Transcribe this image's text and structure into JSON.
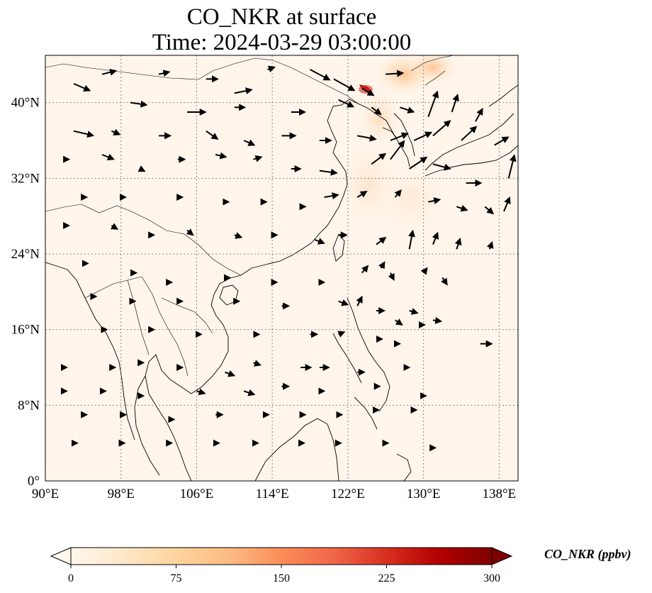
{
  "title": {
    "line1": "CO_NKR at surface",
    "line2": "Time: 2024-03-29 03:00:00"
  },
  "map": {
    "extent": {
      "lon_min": 90,
      "lon_max": 140,
      "lat_min": 0,
      "lat_max": 45
    },
    "lon_ticks": [
      90,
      98,
      106,
      114,
      122,
      130,
      138
    ],
    "lat_ticks": [
      0,
      8,
      16,
      24,
      32,
      40
    ],
    "lon_tick_labels": [
      "90°E",
      "98°E",
      "106°E",
      "114°E",
      "122°E",
      "130°E",
      "138°E"
    ],
    "lat_tick_labels": [
      "0°",
      "8°N",
      "16°N",
      "24°N",
      "32°N",
      "40°N"
    ],
    "gridlines": true,
    "background_color": "#fff5eb",
    "features": [
      "coastlines",
      "borders",
      "wind-vectors"
    ],
    "hotspot": {
      "lon": 123.2,
      "lat": 41.7,
      "value": 260
    }
  },
  "colorbar": {
    "label": "CO_NKR (ppbv)",
    "min": 0,
    "max": 300,
    "ticks": [
      0,
      75,
      150,
      225,
      300
    ],
    "tick_labels": [
      "0",
      "75",
      "150",
      "225",
      "300"
    ],
    "extend": "both",
    "colormap": "OrRd",
    "colors": [
      "#fff7ec",
      "#fee8c8",
      "#fdd49e",
      "#fdbb84",
      "#fc8d59",
      "#ef6548",
      "#d7301f",
      "#b30000",
      "#7f0000"
    ]
  },
  "wind_vectors": [
    [
      93,
      42,
      1.4,
      -0.6
    ],
    [
      96,
      43,
      1.2,
      0.3
    ],
    [
      102,
      43,
      0.9,
      0.2
    ],
    [
      107,
      42.5,
      1.0,
      0
    ],
    [
      110,
      41,
      1.5,
      0.3
    ],
    [
      113.5,
      43.5,
      0.6,
      0.2
    ],
    [
      118,
      43.5,
      1.7,
      -0.9
    ],
    [
      120.5,
      42.5,
      1.8,
      -1.0
    ],
    [
      123.5,
      41.5,
      1.0,
      -0.6
    ],
    [
      126,
      43,
      1.5,
      0.1
    ],
    [
      99,
      40,
      1.4,
      -0.2
    ],
    [
      105,
      39,
      1.6,
      0
    ],
    [
      110,
      39.5,
      0.9,
      0
    ],
    [
      116,
      39,
      1.2,
      0
    ],
    [
      121,
      40.3,
      1.3,
      -0.6
    ],
    [
      124.5,
      39.5,
      0.8,
      -0.6
    ],
    [
      127.5,
      39.5,
      1.2,
      -0.4
    ],
    [
      130.5,
      38.5,
      0.8,
      2.2
    ],
    [
      133,
      39,
      0.5,
      1.5
    ],
    [
      135.5,
      38,
      0.6,
      1.1
    ],
    [
      93,
      37,
      1.7,
      -0.4
    ],
    [
      97,
      37,
      0.7,
      -0.3
    ],
    [
      102,
      36.5,
      1.0,
      0
    ],
    [
      107,
      37,
      1.0,
      -0.7
    ],
    [
      111,
      36,
      0.9,
      -0.4
    ],
    [
      115,
      36.5,
      1.2,
      0
    ],
    [
      119,
      36,
      1.0,
      0
    ],
    [
      123,
      36.5,
      1.6,
      -0.3
    ],
    [
      126.5,
      36,
      1.5,
      0.6
    ],
    [
      129,
      36,
      1.5,
      0.7
    ],
    [
      131,
      36.5,
      1.5,
      1.3
    ],
    [
      134,
      36,
      1.3,
      1.2
    ],
    [
      137.5,
      35.5,
      1.2,
      0.7
    ],
    [
      92,
      34,
      0.4,
      0
    ],
    [
      96,
      34.5,
      1.0,
      -0.4
    ],
    [
      100,
      33,
      0.4,
      -0.2
    ],
    [
      104,
      34,
      0.6,
      0
    ],
    [
      108,
      34.5,
      0.9,
      -0.2
    ],
    [
      112,
      34,
      0.7,
      0.2
    ],
    [
      116,
      33,
      0.8,
      0
    ],
    [
      119,
      32.8,
      1.5,
      -0.2
    ],
    [
      124.5,
      33.5,
      1.2,
      0.9
    ],
    [
      126.5,
      34,
      1.2,
      1.6
    ],
    [
      128.5,
      33,
      1.5,
      1.0
    ],
    [
      131,
      33.5,
      1.5,
      -0.4
    ],
    [
      134.5,
      31.5,
      1.3,
      0
    ],
    [
      139,
      32,
      0.5,
      2.0
    ],
    [
      94,
      30,
      0.3,
      0
    ],
    [
      98,
      30,
      0.4,
      0
    ],
    [
      104,
      30,
      0.4,
      0
    ],
    [
      109,
      29.5,
      0.3,
      0
    ],
    [
      113,
      29.5,
      0.3,
      0
    ],
    [
      117,
      29,
      0.4,
      0
    ],
    [
      119.5,
      30,
      1.2,
      0.2
    ],
    [
      123,
      30,
      0.8,
      0.5
    ],
    [
      127,
      30,
      0.5,
      0.6
    ],
    [
      130.5,
      29.5,
      1.0,
      0.2
    ],
    [
      133.5,
      29,
      0.9,
      -0.3
    ],
    [
      136.5,
      29,
      0.7,
      -0.6
    ],
    [
      138.5,
      28.5,
      0.5,
      1.2
    ],
    [
      92,
      27,
      0.4,
      0
    ],
    [
      97,
      27,
      0.5,
      -0.3
    ],
    [
      101,
      26,
      0.4,
      0
    ],
    [
      105,
      26.5,
      0.5,
      -0.4
    ],
    [
      110,
      26,
      0.6,
      -0.2
    ],
    [
      114,
      26,
      0.4,
      0
    ],
    [
      118.5,
      25.5,
      0.8,
      -0.3
    ],
    [
      121,
      26,
      0.7,
      0
    ],
    [
      125,
      25,
      0.8,
      0.6
    ],
    [
      128.5,
      24.5,
      0.3,
      1.6
    ],
    [
      131,
      25,
      0.4,
      1.0
    ],
    [
      133.5,
      24.5,
      0.3,
      0.9
    ],
    [
      137,
      24.5,
      0.2,
      0.6
    ],
    [
      94,
      23,
      0.4,
      0
    ],
    [
      99,
      22,
      0.5,
      0
    ],
    [
      103,
      21,
      0.3,
      0
    ],
    [
      109,
      21.5,
      0.4,
      0
    ],
    [
      114,
      21,
      0.4,
      0
    ],
    [
      119,
      21,
      0.4,
      0
    ],
    [
      123.5,
      22,
      0.5,
      0.6
    ],
    [
      125.5,
      22.5,
      0.3,
      0.5
    ],
    [
      126.5,
      22,
      0.3,
      -0.6
    ],
    [
      130,
      22,
      0.3,
      0.4
    ],
    [
      132,
      21.5,
      0.4,
      -0.6
    ],
    [
      95,
      19.5,
      0.3,
      0
    ],
    [
      99,
      19,
      0.4,
      0
    ],
    [
      104,
      19,
      0.4,
      0
    ],
    [
      110,
      19,
      0.4,
      0
    ],
    [
      115,
      18.5,
      0.6,
      0
    ],
    [
      121,
      19,
      0.8,
      -0.3
    ],
    [
      123,
      18.5,
      0.4,
      0.8
    ],
    [
      125,
      18,
      0.7,
      0
    ],
    [
      127,
      17,
      0.6,
      -0.4
    ],
    [
      128.5,
      18,
      0.7,
      -0.2
    ],
    [
      131,
      17,
      0.7,
      -0.1
    ],
    [
      129.5,
      16.5,
      0.5,
      0
    ],
    [
      96,
      16,
      0.4,
      0
    ],
    [
      101,
      16,
      0.4,
      0
    ],
    [
      106,
      15.5,
      0.4,
      0
    ],
    [
      112,
      15.5,
      0.5,
      0
    ],
    [
      118,
      15.5,
      0.6,
      0
    ],
    [
      121,
      15.5,
      0.5,
      0.2
    ],
    [
      125,
      15,
      0.5,
      0
    ],
    [
      127,
      14.5,
      0.4,
      0
    ],
    [
      136,
      14.5,
      1.0,
      0
    ],
    [
      92,
      12,
      0.2,
      0
    ],
    [
      97,
      12,
      0.3,
      0
    ],
    [
      100,
      12.5,
      0.3,
      0
    ],
    [
      104,
      12,
      0.4,
      0
    ],
    [
      109,
      11.5,
      0.8,
      -0.3
    ],
    [
      112,
      12.5,
      0.6,
      -0.2
    ],
    [
      117,
      12,
      0.9,
      0
    ],
    [
      119,
      12,
      0.8,
      0
    ],
    [
      123,
      11.5,
      0.6,
      0
    ],
    [
      128,
      12,
      0.4,
      0
    ],
    [
      92,
      9.5,
      0.2,
      0
    ],
    [
      96,
      9.5,
      0.3,
      0
    ],
    [
      100,
      9,
      0.3,
      0
    ],
    [
      106,
      9.5,
      0.7,
      -0.2
    ],
    [
      111,
      9.5,
      0.9,
      -0.3
    ],
    [
      115,
      10,
      0.6,
      0
    ],
    [
      119,
      9.5,
      0.4,
      0
    ],
    [
      125,
      10,
      0.3,
      0
    ],
    [
      130,
      9,
      0.2,
      0
    ],
    [
      94,
      7,
      0.3,
      0
    ],
    [
      98,
      7,
      0.4,
      0
    ],
    [
      103,
      6.5,
      0.5,
      0
    ],
    [
      108,
      7,
      0.6,
      0
    ],
    [
      113,
      7,
      0.5,
      0
    ],
    [
      117,
      7,
      0.4,
      0
    ],
    [
      121,
      7,
      0.3,
      0
    ],
    [
      125,
      7.5,
      0.2,
      0
    ],
    [
      129,
      7.5,
      0.2,
      0
    ],
    [
      93,
      4,
      0.3,
      0
    ],
    [
      98,
      4,
      0.3,
      0
    ],
    [
      103,
      4,
      0.3,
      0
    ],
    [
      108,
      4,
      0.3,
      0
    ],
    [
      112,
      4,
      0.4,
      0
    ],
    [
      117,
      4,
      0.3,
      0
    ],
    [
      121,
      4,
      0.2,
      0
    ],
    [
      126,
      4,
      0.2,
      0
    ],
    [
      131,
      3.5,
      0.2,
      0
    ]
  ]
}
